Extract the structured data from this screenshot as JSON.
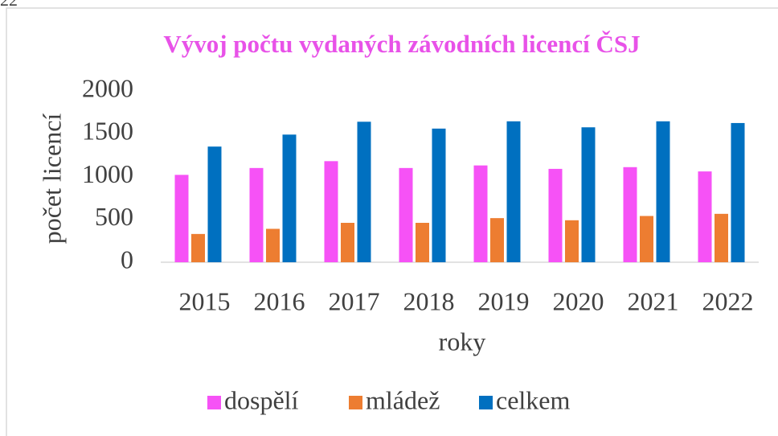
{
  "corner_text": "22",
  "chart_data": {
    "type": "bar",
    "title": "Vývoj počtu vydaných závodních licencí ČSJ",
    "title_color": "#e852e8",
    "x_label": "roky",
    "y_label": "počet licencí",
    "categories": [
      "2015",
      "2016",
      "2017",
      "2018",
      "2019",
      "2020",
      "2021",
      "2022"
    ],
    "series": [
      {
        "name": "dospělí",
        "color": "#f652f6",
        "values": [
          1020,
          1100,
          1180,
          1100,
          1130,
          1090,
          1110,
          1060
        ]
      },
      {
        "name": "mládež",
        "color": "#ed7d31",
        "values": [
          330,
          390,
          460,
          460,
          515,
          490,
          540,
          565
        ]
      },
      {
        "name": "celkem",
        "color": "#0070c0",
        "values": [
          1350,
          1490,
          1640,
          1560,
          1645,
          1575,
          1645,
          1625
        ]
      }
    ],
    "ylim": [
      0,
      2000
    ],
    "yticks": [
      0,
      500,
      1000,
      1500,
      2000
    ],
    "grid": false,
    "legend": "bottom"
  }
}
